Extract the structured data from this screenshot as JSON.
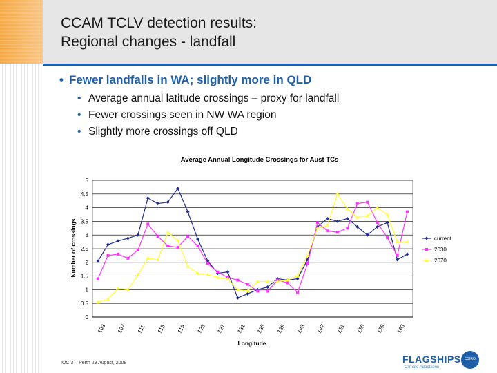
{
  "slide": {
    "title_line1": "CCAM TCLV detection results:",
    "title_line2": "Regional changes - landfall",
    "main_bullet": "Fewer landfalls in WA; slightly more in QLD",
    "sub_bullets": [
      "Average annual latitude crossings – proxy for landfall",
      "Fewer crossings seen in NW WA region",
      "Slightly more crossings off QLD"
    ],
    "footer": "IOCI3 – Perth 29 August, 2008",
    "logo_text": "FLAGSHIPS",
    "logo_subtext": "Climate Adaptation",
    "csiro_text": "CSIRO"
  },
  "colors": {
    "accent": "#1f5fa8",
    "current": "#1f2a8c",
    "s2030": "#ff33ff",
    "s2070": "#ffff33"
  },
  "chart_data": {
    "type": "line",
    "title": "Average Annual Longitude Crossings for Aust TCs",
    "xlabel": "Longitude",
    "ylabel": "Number of crossings",
    "ylim": [
      0,
      5
    ],
    "yticks": [
      "0",
      "0.5",
      "1",
      "1.5",
      "2",
      "2.5",
      "3",
      "3.5",
      "4",
      "4.5",
      "5"
    ],
    "x": [
      103,
      105,
      107,
      109,
      111,
      113,
      115,
      117,
      119,
      121,
      123,
      125,
      127,
      129,
      131,
      133,
      135,
      137,
      139,
      141,
      143,
      145,
      147,
      149,
      151,
      153,
      155,
      157,
      159,
      161,
      163,
      165
    ],
    "xtick_labels": [
      "103",
      "107",
      "111",
      "115",
      "119",
      "123",
      "127",
      "131",
      "135",
      "139",
      "143",
      "147",
      "151",
      "155",
      "159",
      "163"
    ],
    "series": [
      {
        "name": "current",
        "marker": "diamond",
        "values": [
          2.05,
          2.65,
          2.78,
          2.88,
          3.0,
          4.35,
          4.15,
          4.2,
          4.7,
          3.85,
          2.85,
          2.05,
          1.6,
          1.65,
          0.7,
          0.85,
          1.0,
          1.1,
          1.4,
          1.35,
          1.4,
          2.1,
          3.3,
          3.6,
          3.5,
          3.6,
          3.3,
          3.0,
          3.3,
          3.45,
          2.1,
          2.3
        ]
      },
      {
        "name": "2030",
        "marker": "square",
        "values": [
          1.4,
          2.25,
          2.3,
          2.15,
          2.45,
          3.4,
          2.95,
          2.6,
          2.55,
          2.95,
          2.6,
          1.95,
          1.65,
          1.45,
          1.35,
          1.2,
          0.95,
          0.95,
          1.35,
          1.25,
          0.9,
          1.95,
          3.45,
          3.15,
          3.1,
          3.25,
          4.15,
          4.2,
          3.45,
          2.9,
          2.25,
          3.85
        ]
      },
      {
        "name": "2070",
        "marker": "triangle",
        "values": [
          0.55,
          0.65,
          1.05,
          1.0,
          1.55,
          2.15,
          2.1,
          3.1,
          2.8,
          1.85,
          1.6,
          1.55,
          1.45,
          1.4,
          1.0,
          0.95,
          1.3,
          1.3,
          1.3,
          1.35,
          1.5,
          2.25,
          3.25,
          3.35,
          4.5,
          3.95,
          3.65,
          3.7,
          4.0,
          3.75,
          2.75,
          2.75
        ]
      }
    ],
    "legend_position": "right",
    "grid": "horizontal"
  }
}
